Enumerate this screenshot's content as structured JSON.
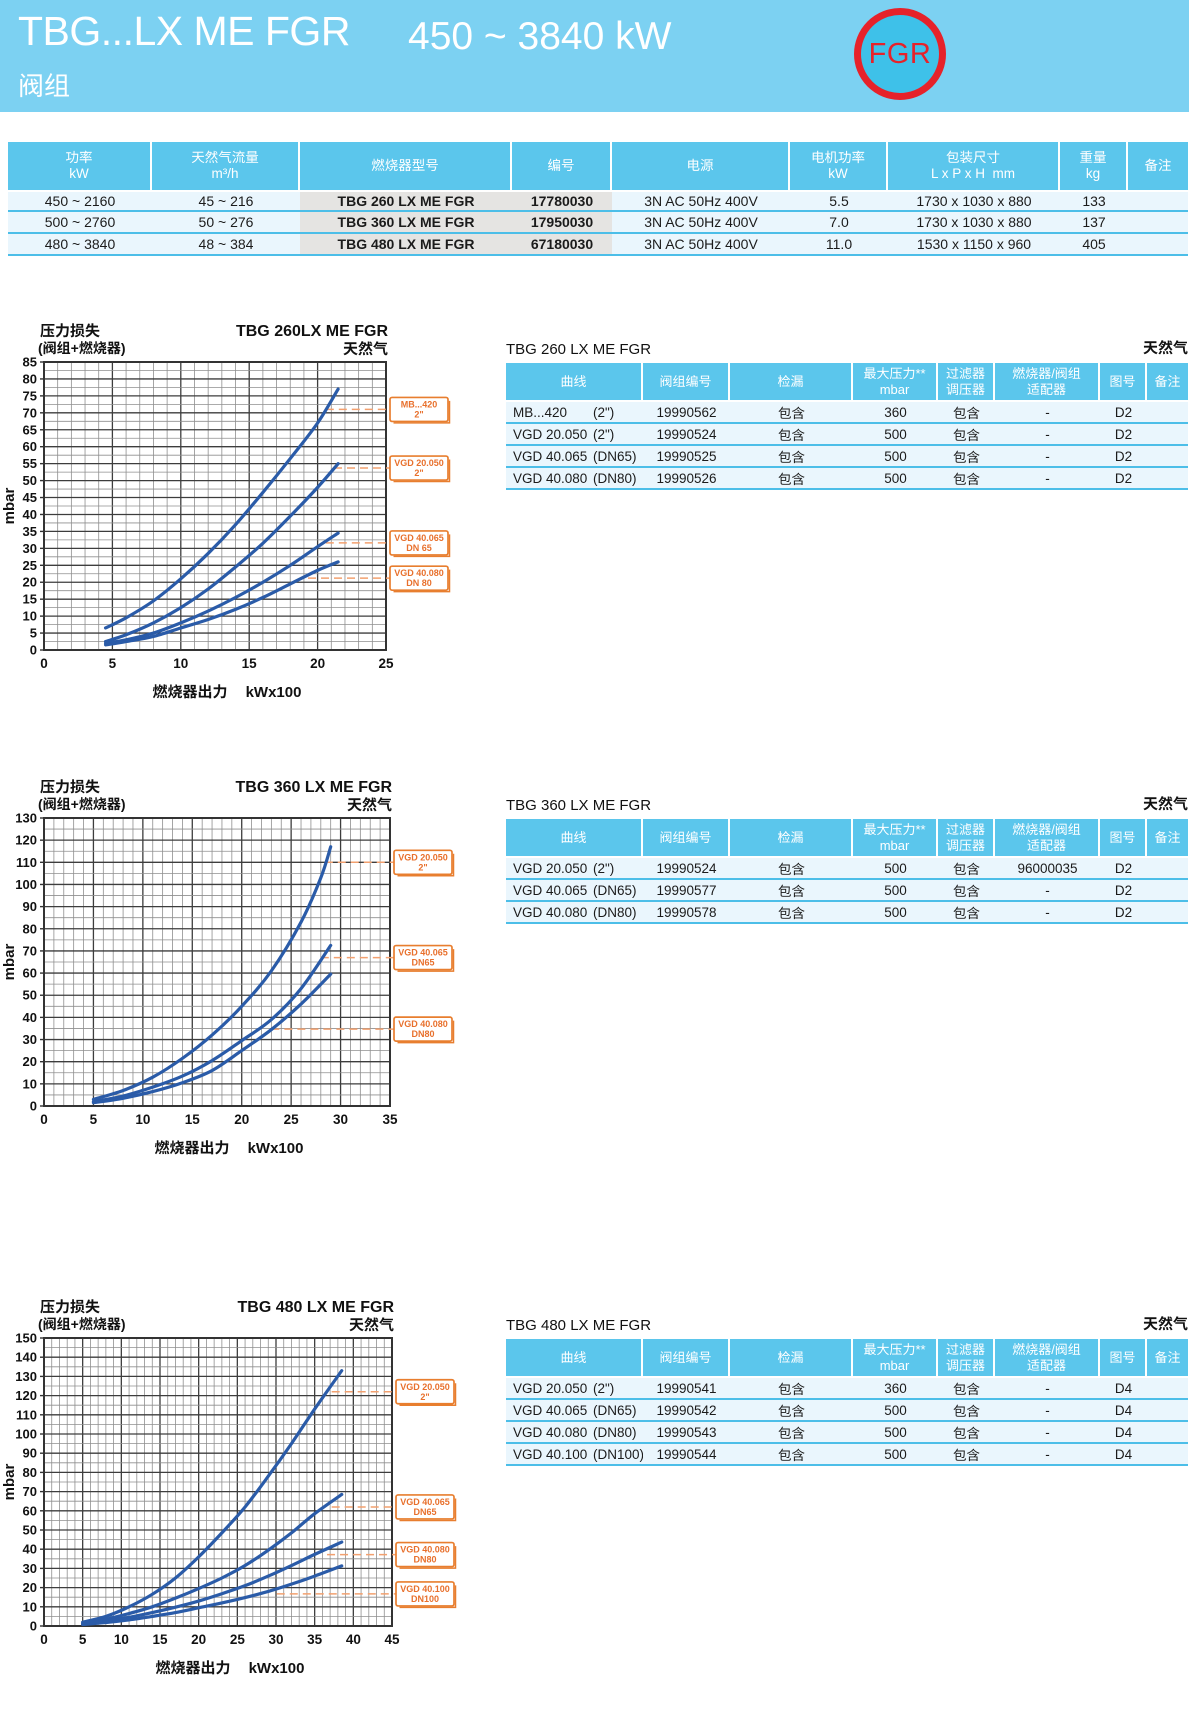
{
  "header": {
    "title": "TBG...LX ME FGR",
    "power_range": "450 ~ 3840 kW",
    "subtitle": "阀组",
    "badge_label": "FGR",
    "colors": {
      "banner": "#7CD1F2",
      "badge_ring": "#E6222A",
      "badge_fill": "#3EC1E9",
      "table_header": "#5BC6EC",
      "row_fill": "#EAF6FD",
      "row_separator": "#4CBEE8",
      "curve": "#2A5BA8",
      "callout_orange": "#E87E2F"
    }
  },
  "spec_table": {
    "columns": [
      [
        "功率",
        "kW"
      ],
      [
        "天然气流量",
        "m³/h"
      ],
      [
        "燃烧器型号"
      ],
      [
        "编号"
      ],
      [
        "电源"
      ],
      [
        "电机功率",
        "kW"
      ],
      [
        "包装尺寸",
        "L x P x H  mm"
      ],
      [
        "重量",
        "kg"
      ],
      [
        "备注"
      ]
    ],
    "rows": [
      {
        "power": "450 ~ 2160",
        "flow": "45 ~ 216",
        "model": "TBG 260 LX ME FGR",
        "code": "17780030",
        "supply": "3N AC 50Hz 400V",
        "motor": "5.5",
        "dims": "1730 x 1030 x 880",
        "weight": "133",
        "note": ""
      },
      {
        "power": "500 ~ 2760",
        "flow": "50 ~ 276",
        "model": "TBG 360 LX ME FGR",
        "code": "17950030",
        "supply": "3N AC 50Hz 400V",
        "motor": "7.0",
        "dims": "1730 x 1030 x 880",
        "weight": "137",
        "note": ""
      },
      {
        "power": "480 ~ 3840",
        "flow": "48 ~ 384",
        "model": "TBG 480 LX ME FGR",
        "code": "67180030",
        "supply": "3N AC 50Hz 400V",
        "motor": "11.0",
        "dims": "1530 x 1150 x 960",
        "weight": "405",
        "note": ""
      }
    ]
  },
  "sections": [
    {
      "id": "tbg260",
      "chart_data": {
        "type": "line",
        "title": "TBG 260LX ME FGR",
        "gas_label": "天然气",
        "ylabel_title": "压力损失",
        "ylabel_sub": "(阀组+燃烧器)",
        "y_unit": "mbar",
        "xlabel": "燃烧器出力",
        "x_unit": "kWx100",
        "xlim": [
          0,
          25
        ],
        "ylim": [
          0,
          85
        ],
        "x_major": 5,
        "x_minor": 1,
        "y_major": 5,
        "y_minor": 2.5,
        "grid": true,
        "series": [
          {
            "name": "MB...420",
            "size": "2\"",
            "callout_y": 71,
            "callout_from_x": 20.6,
            "points": [
              [
                4.5,
                6.5
              ],
              [
                6,
                9.5
              ],
              [
                8,
                14.5
              ],
              [
                10,
                21
              ],
              [
                12,
                28.5
              ],
              [
                14,
                37
              ],
              [
                16,
                46.5
              ],
              [
                18,
                56.5
              ],
              [
                20,
                67
              ],
              [
                21.5,
                77
              ]
            ]
          },
          {
            "name": "VGD 20.050",
            "size": "2\"",
            "callout_y": 53.7,
            "callout_from_x": 21.2,
            "points": [
              [
                4.5,
                2.5
              ],
              [
                6,
                4.5
              ],
              [
                8,
                8
              ],
              [
                10,
                12.5
              ],
              [
                12,
                18
              ],
              [
                14,
                24.5
              ],
              [
                16,
                31.5
              ],
              [
                18,
                39.5
              ],
              [
                20,
                48
              ],
              [
                21.5,
                55
              ]
            ]
          },
          {
            "name": "VGD 40.065",
            "size": "DN 65",
            "callout_y": 31.6,
            "callout_from_x": 20.6,
            "points": [
              [
                4.5,
                2
              ],
              [
                6,
                3
              ],
              [
                8,
                5
              ],
              [
                10,
                8
              ],
              [
                12,
                11.5
              ],
              [
                14,
                15.5
              ],
              [
                16,
                20
              ],
              [
                18,
                25
              ],
              [
                20,
                30.5
              ],
              [
                21.5,
                34.5
              ]
            ]
          },
          {
            "name": "VGD 40.080",
            "size": "DN 80",
            "callout_y": 21.2,
            "callout_from_x": 19.3,
            "points": [
              [
                4.5,
                1.5
              ],
              [
                6,
                2.5
              ],
              [
                8,
                4
              ],
              [
                10,
                6.5
              ],
              [
                12,
                9
              ],
              [
                14,
                12
              ],
              [
                16,
                15.5
              ],
              [
                18,
                19.5
              ],
              [
                20,
                23.5
              ],
              [
                21.5,
                26
              ]
            ]
          }
        ]
      },
      "table": {
        "title": "TBG 260 LX ME FGR",
        "gas_label": "天然气",
        "columns": [
          [
            "曲线"
          ],
          [
            "阀组编号"
          ],
          [
            "检漏"
          ],
          [
            "最大压力**",
            "mbar"
          ],
          [
            "过滤器",
            "调压器"
          ],
          [
            "燃烧器/阀组",
            "适配器"
          ],
          [
            "图号"
          ],
          [
            "备注"
          ]
        ],
        "rows": [
          {
            "curve": "MB...420",
            "curve_size": "(2\")",
            "code": "19990562",
            "leak": "包含",
            "max_pressure": "360",
            "filter": "包含",
            "adapter": "-",
            "figure": "D2",
            "note": ""
          },
          {
            "curve": "VGD 20.050",
            "curve_size": "(2\")",
            "code": "19990524",
            "leak": "包含",
            "max_pressure": "500",
            "filter": "包含",
            "adapter": "-",
            "figure": "D2",
            "note": ""
          },
          {
            "curve": "VGD 40.065",
            "curve_size": "(DN65)",
            "code": "19990525",
            "leak": "包含",
            "max_pressure": "500",
            "filter": "包含",
            "adapter": "-",
            "figure": "D2",
            "note": ""
          },
          {
            "curve": "VGD 40.080",
            "curve_size": "(DN80)",
            "code": "19990526",
            "leak": "包含",
            "max_pressure": "500",
            "filter": "包含",
            "adapter": "-",
            "figure": "D2",
            "note": ""
          }
        ]
      }
    },
    {
      "id": "tbg360",
      "chart_data": {
        "type": "line",
        "title": "TBG 360 LX ME FGR",
        "gas_label": "天然气",
        "ylabel_title": "压力损失",
        "ylabel_sub": "(阀组+燃烧器)",
        "y_unit": "mbar",
        "xlabel": "燃烧器出力",
        "x_unit": "kWx100",
        "xlim": [
          0,
          35
        ],
        "ylim": [
          0,
          130
        ],
        "x_major": 5,
        "x_minor": 1,
        "y_major": 10,
        "y_minor": 5,
        "grid": true,
        "series": [
          {
            "name": "VGD 20.050",
            "size": "2\"",
            "callout_y": 110,
            "callout_from_x": 28.4,
            "points": [
              [
                5,
                3
              ],
              [
                8,
                7
              ],
              [
                11,
                13
              ],
              [
                14,
                21.5
              ],
              [
                17,
                32
              ],
              [
                20,
                45
              ],
              [
                23,
                61
              ],
              [
                26,
                83
              ],
              [
                28,
                103
              ],
              [
                29,
                117
              ]
            ]
          },
          {
            "name": "VGD 40.065",
            "size": "DN65",
            "callout_y": 67,
            "callout_from_x": 28.0,
            "points": [
              [
                5,
                2
              ],
              [
                8,
                4.5
              ],
              [
                11,
                8.5
              ],
              [
                14,
                13.5
              ],
              [
                17,
                20.5
              ],
              [
                20,
                29.5
              ],
              [
                23,
                39
              ],
              [
                26,
                53
              ],
              [
                29,
                72.5
              ]
            ]
          },
          {
            "name": "VGD 40.080",
            "size": "DN80",
            "callout_y": 34.7,
            "callout_from_x": 23.0,
            "points": [
              [
                5,
                1.5
              ],
              [
                8,
                3.5
              ],
              [
                11,
                6.5
              ],
              [
                14,
                10.5
              ],
              [
                17,
                16
              ],
              [
                20,
                25
              ],
              [
                23,
                34.5
              ],
              [
                26,
                46
              ],
              [
                29,
                59.5
              ]
            ]
          }
        ]
      },
      "table": {
        "title": "TBG 360 LX ME FGR",
        "gas_label": "天然气",
        "columns": [
          [
            "曲线"
          ],
          [
            "阀组编号"
          ],
          [
            "检漏"
          ],
          [
            "最大压力**",
            "mbar"
          ],
          [
            "过滤器",
            "调压器"
          ],
          [
            "燃烧器/阀组",
            "适配器"
          ],
          [
            "图号"
          ],
          [
            "备注"
          ]
        ],
        "rows": [
          {
            "curve": "VGD 20.050",
            "curve_size": "(2\")",
            "code": "19990524",
            "leak": "包含",
            "max_pressure": "500",
            "filter": "包含",
            "adapter": "96000035",
            "figure": "D2",
            "note": ""
          },
          {
            "curve": "VGD 40.065",
            "curve_size": "(DN65)",
            "code": "19990577",
            "leak": "包含",
            "max_pressure": "500",
            "filter": "包含",
            "adapter": "-",
            "figure": "D2",
            "note": ""
          },
          {
            "curve": "VGD 40.080",
            "curve_size": "(DN80)",
            "code": "19990578",
            "leak": "包含",
            "max_pressure": "500",
            "filter": "包含",
            "adapter": "-",
            "figure": "D2",
            "note": ""
          }
        ]
      }
    },
    {
      "id": "tbg480",
      "chart_data": {
        "type": "line",
        "title": "TBG 480 LX ME FGR",
        "gas_label": "天然气",
        "ylabel_title": "压力损失",
        "ylabel_sub": "(阀组+燃烧器)",
        "y_unit": "mbar",
        "xlabel": "燃烧器出力",
        "x_unit": "kWx100",
        "xlim": [
          0,
          45
        ],
        "ylim": [
          0,
          150
        ],
        "x_major": 5,
        "x_minor": 1,
        "y_major": 10,
        "y_minor": 5,
        "grid": true,
        "series": [
          {
            "name": "VGD 20.050",
            "size": "2\"",
            "callout_y": 122,
            "callout_from_x": 37.2,
            "points": [
              [
                5,
                2
              ],
              [
                8,
                5
              ],
              [
                11,
                10
              ],
              [
                14,
                16.5
              ],
              [
                17,
                25
              ],
              [
                20,
                36
              ],
              [
                23,
                48.5
              ],
              [
                26,
                62
              ],
              [
                29,
                78
              ],
              [
                32,
                95
              ],
              [
                35,
                113
              ],
              [
                38.5,
                133
              ]
            ]
          },
          {
            "name": "VGD 40.065",
            "size": "DN65",
            "callout_y": 62,
            "callout_from_x": 37.2,
            "points": [
              [
                5,
                1.5
              ],
              [
                8,
                3.5
              ],
              [
                11,
                6.5
              ],
              [
                14,
                10
              ],
              [
                17,
                14.5
              ],
              [
                20,
                19.5
              ],
              [
                23,
                25
              ],
              [
                26,
                31.5
              ],
              [
                29,
                39.5
              ],
              [
                32,
                48.5
              ],
              [
                35,
                58.5
              ],
              [
                38.5,
                68.5
              ]
            ]
          },
          {
            "name": "VGD 40.080",
            "size": "DN80",
            "callout_y": 37.2,
            "callout_from_x": 36.6,
            "points": [
              [
                5,
                1
              ],
              [
                8,
                2.5
              ],
              [
                11,
                4.5
              ],
              [
                14,
                7
              ],
              [
                17,
                9.8
              ],
              [
                20,
                13
              ],
              [
                23,
                16.8
              ],
              [
                26,
                21
              ],
              [
                29,
                26
              ],
              [
                32,
                31.5
              ],
              [
                35,
                37.3
              ],
              [
                38.5,
                43.7
              ]
            ]
          },
          {
            "name": "VGD 40.100",
            "size": "DN100",
            "callout_y": 16.7,
            "callout_from_x": 30.1,
            "points": [
              [
                5,
                0.8
              ],
              [
                8,
                1.8
              ],
              [
                11,
                3.2
              ],
              [
                14,
                5
              ],
              [
                17,
                7
              ],
              [
                20,
                9.5
              ],
              [
                23,
                12
              ],
              [
                26,
                14.8
              ],
              [
                29,
                18
              ],
              [
                32,
                21.8
              ],
              [
                35,
                26
              ],
              [
                38.5,
                31.3
              ]
            ]
          }
        ]
      },
      "table": {
        "title": "TBG 480 LX ME FGR",
        "gas_label": "天然气",
        "columns": [
          [
            "曲线"
          ],
          [
            "阀组编号"
          ],
          [
            "检漏"
          ],
          [
            "最大压力**",
            "mbar"
          ],
          [
            "过滤器",
            "调压器"
          ],
          [
            "燃烧器/阀组",
            "适配器"
          ],
          [
            "图号"
          ],
          [
            "备注"
          ]
        ],
        "rows": [
          {
            "curve": "VGD 20.050",
            "curve_size": "(2\")",
            "code": "19990541",
            "leak": "包含",
            "max_pressure": "360",
            "filter": "包含",
            "adapter": "-",
            "figure": "D4",
            "note": ""
          },
          {
            "curve": "VGD 40.065",
            "curve_size": "(DN65)",
            "code": "19990542",
            "leak": "包含",
            "max_pressure": "500",
            "filter": "包含",
            "adapter": "-",
            "figure": "D4",
            "note": ""
          },
          {
            "curve": "VGD 40.080",
            "curve_size": "(DN80)",
            "code": "19990543",
            "leak": "包含",
            "max_pressure": "500",
            "filter": "包含",
            "adapter": "-",
            "figure": "D4",
            "note": ""
          },
          {
            "curve": "VGD 40.100",
            "curve_size": "(DN100)",
            "code": "19990544",
            "leak": "包含",
            "max_pressure": "500",
            "filter": "包含",
            "adapter": "-",
            "figure": "D4",
            "note": ""
          }
        ]
      }
    }
  ]
}
